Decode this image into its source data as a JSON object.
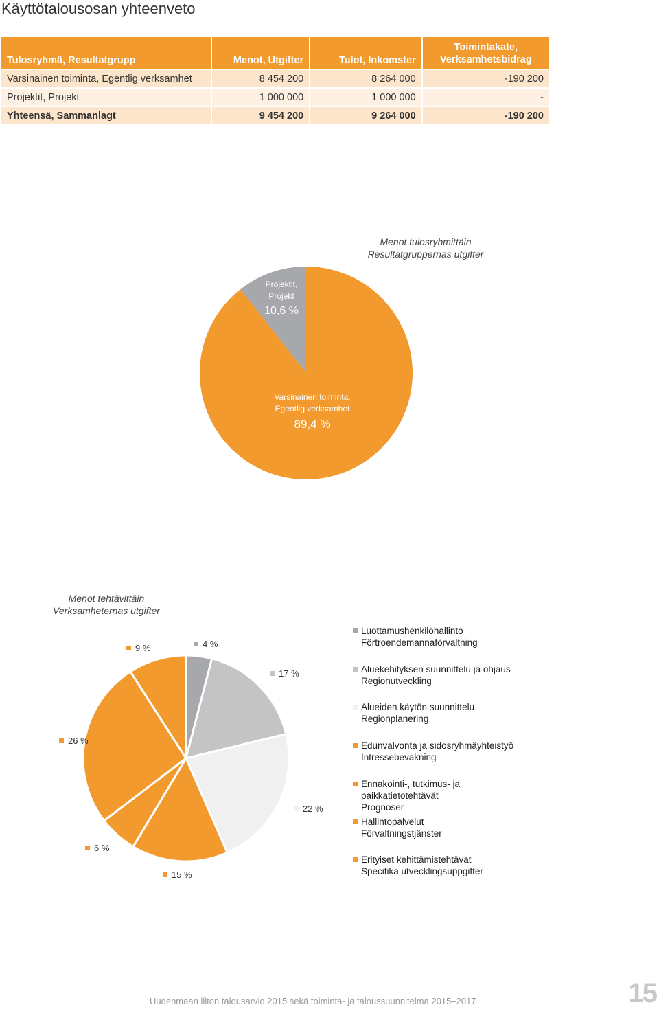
{
  "page": {
    "title": "Käyttötalousosan yhteenveto",
    "footer": "Uudenmaan liiton talousarvio 2015 sekä toiminta- ja taloussuunnitelma 2015–2017",
    "page_number": "15"
  },
  "table": {
    "headers": [
      "Tulosryhmä, Resultatgrupp",
      "Menot, Utgifter",
      "Tulot, Inkomster",
      "Toimintakate, Verksamhetsbidrag"
    ],
    "rows": [
      [
        "Varsinainen toiminta, Egentlig verksamhet",
        "8 454 200",
        "8 264 000",
        "-190 200"
      ],
      [
        "Projektit, Projekt",
        "1 000 000",
        "1 000 000",
        "-"
      ],
      [
        "Yhteensä, Sammanlagt",
        "9 454 200",
        "9 264 000",
        "-190 200"
      ]
    ]
  },
  "chart1": {
    "title_line1": "Menot tulosryhmittäin",
    "title_line2": "Resultatgruppernas utgifter",
    "slices": [
      {
        "label_line1": "Projektit,",
        "label_line2": "Projekt",
        "value_text": "10,6 %",
        "value": 10.6,
        "color": "#a7a8ab"
      },
      {
        "label_line1": "Varsinainen toiminta,",
        "label_line2": "Egentlig verksamhet",
        "value_text": "89,4 %",
        "value": 89.4,
        "color": "#f29a2e"
      }
    ]
  },
  "chart2": {
    "title_line1": "Menot tehtävittäin",
    "title_line2": "Verksamheternas utgifter",
    "slices": [
      {
        "value": 4,
        "label": "4 %",
        "color": "#a7a8ab"
      },
      {
        "value": 17,
        "label": "17 %",
        "color": "#c4c4c4"
      },
      {
        "value": 22,
        "label": "22 %",
        "color": "#f0f0f0"
      },
      {
        "value": 15,
        "label": "15 %",
        "color": "#f29a2e"
      },
      {
        "value": 6,
        "label": "6 %",
        "color": "#f29a2e"
      },
      {
        "value": 26,
        "label": "26 %",
        "color": "#f29a2e"
      },
      {
        "value": 9,
        "label": "9 %",
        "color": "#f29a2e"
      }
    ],
    "legend": [
      {
        "line1": "Luottamushenkilöhallinto",
        "line2": "Förtroendemannaförvaltning",
        "color": "#a7a8ab"
      },
      {
        "line1": "Aluekehityksen suunnittelu ja ohjaus",
        "line2": "Regionutveckling",
        "color": "#c4c4c4"
      },
      {
        "line1": "Alueiden käytön suunnittelu",
        "line2": "Regionplanering",
        "color": "#f0f0f0"
      },
      {
        "line1": "Edunvalvonta ja sidosryhmäyhteistyö",
        "line2": "Intressebevakning",
        "color": "#f29a2e"
      },
      {
        "line1": "Ennakointi-, tutkimus- ja",
        "line2": "paikkatietotehtävät",
        "line3": "Prognoser",
        "color": "#f29a2e"
      },
      {
        "line1": "Hallintopalvelut",
        "line2": "Förvaltningstjänster",
        "color": "#f29a2e"
      },
      {
        "line1": "Erityiset kehittämistehtävät",
        "line2": "Specifika utvecklingsuppgifter",
        "color": "#f29a2e"
      }
    ]
  },
  "chart_data": [
    {
      "type": "pie",
      "title": "Menot tulosryhmittäin / Resultatgruppernas utgifter",
      "categories": [
        "Projektit, Projekt",
        "Varsinainen toiminta, Egentlig verksamhet"
      ],
      "values": [
        10.6,
        89.4
      ]
    },
    {
      "type": "pie",
      "title": "Menot tehtävittäin / Verksamheternas utgifter",
      "categories": [
        "Luottamushenkilöhallinto",
        "Aluekehityksen suunnittelu ja ohjaus",
        "Alueiden käytön suunnittelu",
        "Edunvalvonta ja sidosryhmäyhteistyö",
        "Ennakointi-, tutkimus- ja paikkatietotehtävät",
        "Hallintopalvelut",
        "Erityiset kehittämistehtävät"
      ],
      "values": [
        4,
        17,
        22,
        15,
        6,
        26,
        9
      ]
    }
  ]
}
